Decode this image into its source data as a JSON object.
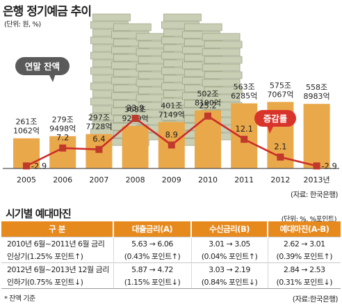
{
  "header": {
    "title": "은행 정기예금 추이",
    "unit": "(단위: 원, %)",
    "source": "(자료: 한국은행)"
  },
  "annotations": {
    "balance_bubble": "연말 잔액",
    "growth_bubble": "증감률"
  },
  "colors": {
    "bar": "#e9a84a",
    "line": "#cc2b2b",
    "marker": "#c0392b",
    "bubble_dark": "#5a5a5a",
    "bubble_red": "#d9342b",
    "table_header": "#e68a1e"
  },
  "chart_data": {
    "type": "bar",
    "categories": [
      "2005",
      "2006",
      "2007",
      "2008",
      "2009",
      "2010",
      "2011",
      "2012",
      "2013년"
    ],
    "series": [
      {
        "values": [
          261.1062,
          279.9498,
          297.7728,
          368.9219,
          401.7149,
          502.819,
          563.6285,
          575.7067,
          558.8983
        ]
      },
      {
        "values": [
          -2.9,
          7.2,
          6.4,
          23.9,
          8.9,
          25.2,
          12.1,
          2.1,
          -2.9
        ]
      }
    ],
    "bar_labels": [
      [
        "261조",
        "1062억"
      ],
      [
        "279조",
        "9498억"
      ],
      [
        "297조",
        "7728억"
      ],
      [
        "368조",
        "9219억"
      ],
      [
        "401조",
        "7149억"
      ],
      [
        "502조",
        "8190억"
      ],
      [
        "563조",
        "6285억"
      ],
      [
        "575조",
        "7067억"
      ],
      [
        "558조",
        "8983억"
      ]
    ],
    "line_labels": [
      "-2.9",
      "7.2",
      "6.4",
      "23.9",
      "8.9",
      "25.2",
      "12.1",
      "2.1",
      "-2.9"
    ]
  },
  "table": {
    "title": "시기별 예대마진",
    "unit": "(단위: %, %포인트)",
    "headers": [
      "구  분",
      "대출금리(A)",
      "수신금리(B)",
      "예대마진(A-B)"
    ],
    "rows": [
      {
        "period_line1": "2010년 6월~2011년 6월 금리",
        "period_line2": "인상기(1.25% 포인트↑)",
        "loan_line1": "5.63 → 6.06",
        "loan_line2": "(0.43% 포인트↑)",
        "deposit_line1": "3.01 → 3.05",
        "deposit_line2": "(0.04% 포인트↑)",
        "margin_line1": "2.62 → 3.01",
        "margin_line2": "(0.39% 포인트↑)"
      },
      {
        "period_line1": "2012년 6월~2013년 12월 금리",
        "period_line2": "인하기(0.75% 포인트↓)",
        "loan_line1": "5.87 → 4.72",
        "loan_line2": "(1.15% 포인트↓)",
        "deposit_line1": "3.03 → 2.19",
        "deposit_line2": "(0.84% 포인트↓)",
        "margin_line1": "2.84 → 2.53",
        "margin_line2": "(0.31% 포인트↓)"
      }
    ],
    "note": "* 잔액 기준",
    "source": "(자료:한국은행)"
  }
}
